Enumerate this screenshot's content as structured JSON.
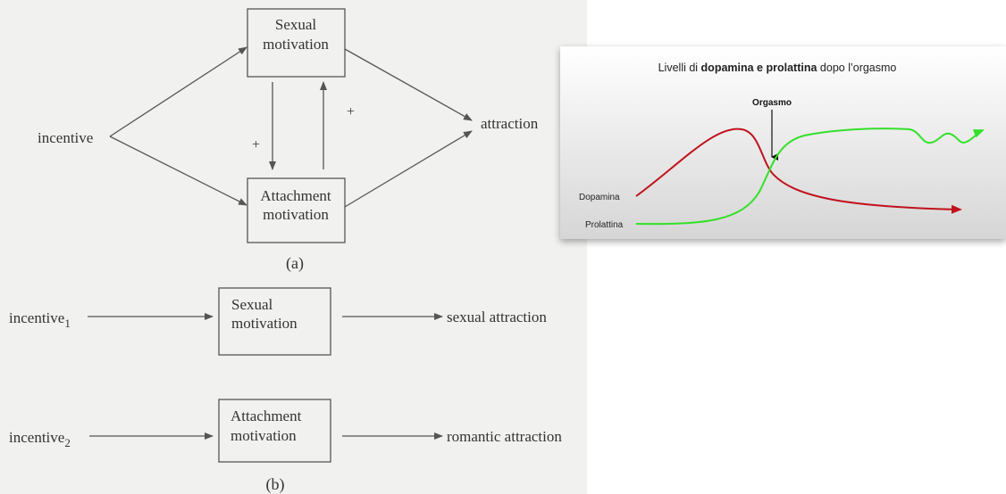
{
  "diagram_a": {
    "input": "incentive",
    "sexual_box": [
      "Sexual",
      "motivation"
    ],
    "attachment_box": [
      "Attachment",
      "motivation"
    ],
    "output": "attraction",
    "plus_left": "+",
    "plus_right": "+",
    "caption": "(a)"
  },
  "diagram_b": {
    "rows": [
      {
        "input": {
          "text": "incentive",
          "sub": "1"
        },
        "box": [
          "Sexual",
          "motivation"
        ],
        "output": "sexual attraction"
      },
      {
        "input": {
          "text": "incentive",
          "sub": "2"
        },
        "box": [
          "Attachment",
          "motivation"
        ],
        "output": "romantic attraction"
      }
    ],
    "caption": "(b)"
  },
  "hormone_chart": {
    "title": {
      "pre": "Livelli di ",
      "bold": "dopamina e prolattina",
      "post": " dopo l’orgasmo"
    },
    "marker": "Orgasmo",
    "series": [
      {
        "name": "Dopamina",
        "color": "#c0121c"
      },
      {
        "name": "Prolattina",
        "color": "#33e02a"
      }
    ]
  }
}
